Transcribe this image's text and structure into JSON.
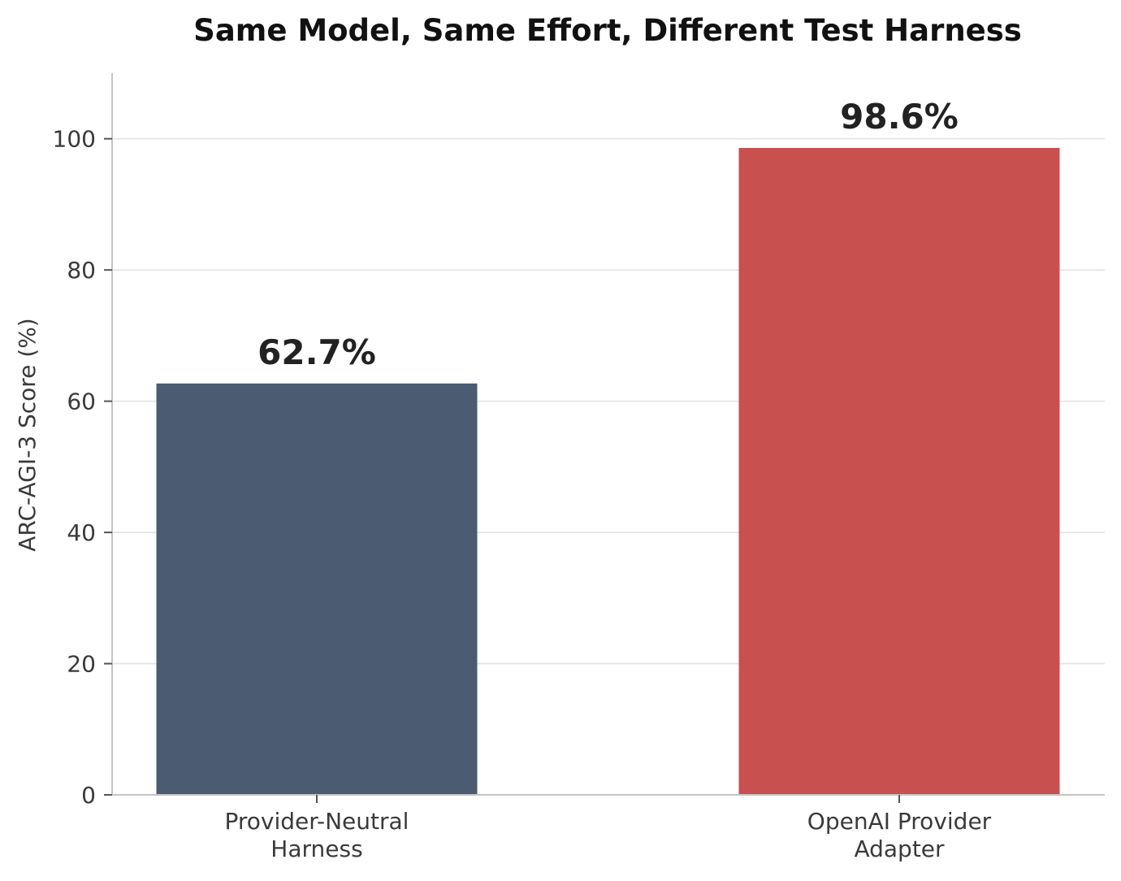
{
  "chart_data": {
    "type": "bar",
    "title": "Same Model, Same Effort, Different Test Harness",
    "xlabel": "",
    "ylabel": "ARC-AGI-3 Score (%)",
    "ylim": [
      0,
      110
    ],
    "yticks": [
      0,
      20,
      40,
      60,
      80,
      100
    ],
    "grid": "horizontal",
    "categories": [
      [
        "Provider-Neutral",
        "Harness"
      ],
      [
        "OpenAI Provider",
        "Adapter"
      ]
    ],
    "values": [
      62.7,
      98.6
    ],
    "value_labels": [
      "62.7%",
      "98.6%"
    ],
    "colors": [
      "#4b5c72",
      "#c8504f"
    ]
  }
}
